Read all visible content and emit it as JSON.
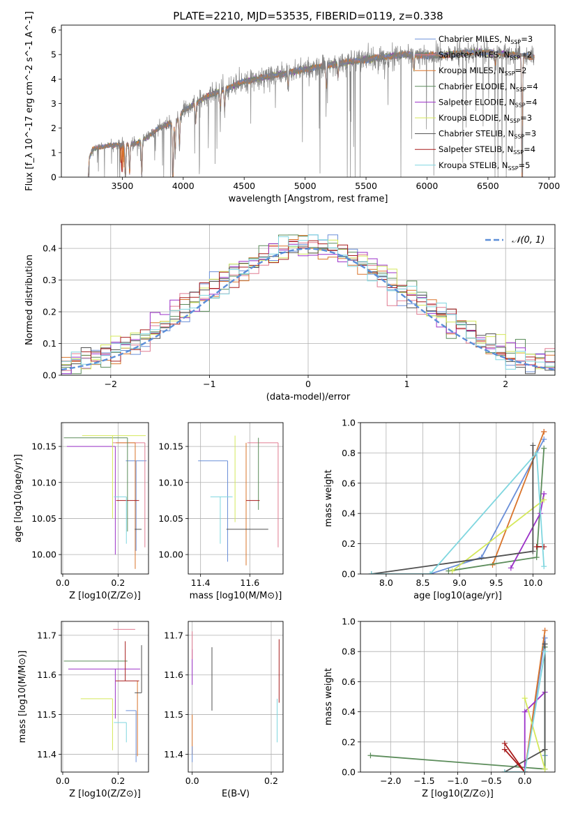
{
  "figure": {
    "title": "PLATE=2210, MJD=53535, FIBERID=0119, z=0.338"
  },
  "models": [
    {
      "name": "Chabrier MILES",
      "nssp": "3",
      "color": "#6a8fd8"
    },
    {
      "name": "Salpeter MILES",
      "nssp": "2",
      "color": "#e07b91"
    },
    {
      "name": "Kroupa MILES",
      "nssp": "2",
      "color": "#d9742b"
    },
    {
      "name": "Chabrier ELODIE",
      "nssp": "4",
      "color": "#5b8c5a"
    },
    {
      "name": "Salpeter ELODIE",
      "nssp": "4",
      "color": "#9b30c8"
    },
    {
      "name": "Kroupa ELODIE",
      "nssp": "3",
      "color": "#d4e85a"
    },
    {
      "name": "Chabrier STELIB",
      "nssp": "3",
      "color": "#505050"
    },
    {
      "name": "Salpeter STELIB",
      "nssp": "4",
      "color": "#a81c1c"
    },
    {
      "name": "Kroupa STELIB",
      "nssp": "5",
      "color": "#7fd6df"
    }
  ],
  "chart_data": [
    {
      "id": "spectrum",
      "type": "line",
      "xlabel": "wavelength [Angstrom, rest frame]",
      "ylabel": "Flux [f_λ 10^-17 erg cm^-2 s^-1 A^-1]",
      "xlim": [
        3000,
        7050
      ],
      "ylim": [
        0,
        6.2
      ],
      "xticks": [
        3500,
        4000,
        4500,
        5000,
        5500,
        6000,
        6500,
        7000
      ],
      "yticks": [
        0,
        1,
        2,
        3,
        4,
        5,
        6
      ],
      "x_range_data": [
        3220,
        6880
      ],
      "continuum_knots": [
        [
          3220,
          0.0
        ],
        [
          3230,
          0.8
        ],
        [
          3260,
          1.15
        ],
        [
          3400,
          1.3
        ],
        [
          3600,
          1.35
        ],
        [
          3700,
          1.6
        ],
        [
          3800,
          2.0
        ],
        [
          3950,
          2.3
        ],
        [
          4000,
          2.7
        ],
        [
          4200,
          3.3
        ],
        [
          4500,
          3.9
        ],
        [
          4800,
          4.2
        ],
        [
          5000,
          4.4
        ],
        [
          5300,
          4.65
        ],
        [
          5500,
          4.8
        ],
        [
          5800,
          5.0
        ],
        [
          6100,
          4.95
        ],
        [
          6400,
          5.1
        ],
        [
          6600,
          5.05
        ],
        [
          6880,
          4.9
        ]
      ],
      "absorption_lines": [
        [
          3934,
          1.3
        ],
        [
          3969,
          1.2
        ],
        [
          4102,
          0.8
        ],
        [
          4304,
          0.7
        ],
        [
          4340,
          0.8
        ],
        [
          4861,
          0.6
        ],
        [
          5175,
          0.9
        ],
        [
          5270,
          0.5
        ],
        [
          5893,
          0.6
        ],
        [
          6563,
          0.5
        ],
        [
          6780,
          5.0
        ],
        [
          3915,
          3.0
        ],
        [
          3525,
          1.5
        ],
        [
          3560,
          1.2
        ],
        [
          3660,
          1.4
        ]
      ]
    },
    {
      "id": "residuals",
      "type": "histogram",
      "xlabel": "(data-model)/error",
      "ylabel": "Normed distribution",
      "xlim": [
        -2.5,
        2.5
      ],
      "ylim": [
        0,
        0.475
      ],
      "xticks": [
        -2,
        -1,
        0,
        1,
        2
      ],
      "yticks": [
        0.0,
        0.1,
        0.2,
        0.3,
        0.4
      ],
      "bin_width": 0.1,
      "reference_curve": {
        "label": "𝒩(0, 1)",
        "color": "#5b8ed8"
      }
    },
    {
      "id": "z_vs_age",
      "type": "errorbar",
      "xlabel": "Z [log10(Z/Z⊙)]",
      "ylabel": "age  [log10(age/yr)]",
      "xlim": [
        -0.005,
        0.31
      ],
      "ylim": [
        9.973,
        10.183
      ],
      "xticks": [
        0.0,
        0.2
      ],
      "yticks": [
        10.0,
        10.05,
        10.1,
        10.15
      ],
      "points": [
        {
          "model": 0,
          "x": 0.265,
          "xerr": [
            0.037,
            0.038
          ],
          "y": 10.13,
          "yerr": [
            0.125,
            0.0
          ]
        },
        {
          "model": 1,
          "x": 0.297,
          "xerr": [
            0.117,
            0.0
          ],
          "y": 10.155,
          "yerr": [
            0.145,
            0.0
          ]
        },
        {
          "model": 2,
          "x": 0.262,
          "xerr": [
            0.07,
            0.0
          ],
          "y": 10.155,
          "yerr": [
            0.175,
            0.0
          ]
        },
        {
          "model": 3,
          "x": 0.234,
          "xerr": [
            0.23,
            0.0
          ],
          "y": 10.162,
          "yerr": [
            0.13,
            0.0
          ]
        },
        {
          "model": 4,
          "x": 0.19,
          "xerr": [
            0.175,
            0.0
          ],
          "y": 10.15,
          "yerr": [
            0.15,
            0.0
          ]
        },
        {
          "model": 5,
          "x": 0.18,
          "xerr": [
            0.11,
            0.12
          ],
          "y": 10.165,
          "yerr": [
            0.115,
            0.0
          ]
        },
        {
          "model": 6,
          "x": 0.285,
          "xerr": [
            0.025,
            0.0
          ],
          "y": 10.035,
          "yerr": [
            0.0,
            0.0
          ]
        },
        {
          "model": 7,
          "x": 0.226,
          "xerr": [
            0.033,
            0.05
          ],
          "y": 10.075,
          "yerr": [
            0.0,
            0.0
          ]
        },
        {
          "model": 8,
          "x": 0.23,
          "xerr": [
            0.045,
            0.0
          ],
          "y": 10.08,
          "yerr": [
            0.065,
            0.0
          ]
        }
      ]
    },
    {
      "id": "mass_vs_age",
      "type": "errorbar",
      "xlabel": "mass [log10(M/M⊙)]",
      "ylabel": "",
      "xlim": [
        11.35,
        11.735
      ],
      "ylim": [
        9.973,
        10.183
      ],
      "xticks": [
        11.4,
        11.6
      ],
      "yticks": [
        10.0,
        10.05,
        10.1,
        10.15
      ],
      "points": [
        {
          "model": 0,
          "x": 11.51,
          "xerr": [
            0.12,
            0.0
          ],
          "y": 10.13,
          "yerr": [
            0.14,
            0.0
          ]
        },
        {
          "model": 1,
          "x": 11.715,
          "xerr": [
            0.125,
            0.0
          ],
          "y": 10.155,
          "yerr": [
            0.145,
            0.0
          ]
        },
        {
          "model": 2,
          "x": 11.585,
          "xerr": [
            0.0,
            0.0
          ],
          "y": 10.155,
          "yerr": [
            0.17,
            0.0
          ]
        },
        {
          "model": 3,
          "x": 11.635,
          "xerr": [
            0.0,
            0.0
          ],
          "y": 10.162,
          "yerr": [
            0.1,
            0.0
          ]
        },
        {
          "model": 4,
          "x": 11.615,
          "xerr": [
            0.0,
            0.0
          ],
          "y": 10.15,
          "yerr": [
            0.0,
            0.0
          ]
        },
        {
          "model": 5,
          "x": 11.54,
          "xerr": [
            0.0,
            0.0
          ],
          "y": 10.165,
          "yerr": [
            0.12,
            0.0
          ]
        },
        {
          "model": 6,
          "x": 11.555,
          "xerr": [
            0.05,
            0.12
          ],
          "y": 10.035,
          "yerr": [
            0.0,
            0.0
          ]
        },
        {
          "model": 7,
          "x": 11.585,
          "xerr": [
            0.0,
            0.055
          ],
          "y": 10.075,
          "yerr": [
            0.0,
            0.0
          ]
        },
        {
          "model": 8,
          "x": 11.48,
          "xerr": [
            0.04,
            0.05
          ],
          "y": 10.08,
          "yerr": [
            0.065,
            0.0
          ]
        }
      ]
    },
    {
      "id": "age_vs_weight",
      "type": "line",
      "xlabel": "age  [log10(age/yr)]",
      "ylabel": "mass weight",
      "xlim": [
        7.65,
        10.3
      ],
      "ylim": [
        0,
        1.0
      ],
      "xticks": [
        8.0,
        8.5,
        9.0,
        9.5,
        10.0
      ],
      "yticks": [
        0.0,
        0.2,
        0.4,
        0.6,
        0.8,
        1.0
      ],
      "series": [
        {
          "model": 0,
          "x": [
            8.6,
            9.3,
            10.15
          ],
          "y": [
            0.0,
            0.11,
            0.89
          ]
        },
        {
          "model": 1,
          "x": [
            10.15
          ],
          "y": [
            0.94
          ]
        },
        {
          "model": 2,
          "x": [
            9.45,
            10.15
          ],
          "y": [
            0.06,
            0.94
          ]
        },
        {
          "model": 3,
          "x": [
            8.85,
            10.05,
            10.15
          ],
          "y": [
            0.02,
            0.11,
            0.83
          ]
        },
        {
          "model": 4,
          "x": [
            9.7,
            10.1,
            10.15
          ],
          "y": [
            0.04,
            0.4,
            0.53
          ]
        },
        {
          "model": 5,
          "x": [
            8.9,
            10.15
          ],
          "y": [
            0.02,
            0.49
          ]
        },
        {
          "model": 6,
          "x": [
            7.8,
            10.0,
            10.0
          ],
          "y": [
            0.0,
            0.15,
            0.85
          ]
        },
        {
          "model": 7,
          "x": [
            10.05,
            10.15
          ],
          "y": [
            0.18,
            0.18
          ]
        },
        {
          "model": 8,
          "x": [
            7.8,
            8.6,
            10.05,
            10.15
          ],
          "y": [
            0.0,
            0.0,
            0.8,
            0.05
          ]
        }
      ]
    },
    {
      "id": "z_vs_mass",
      "type": "errorbar",
      "xlabel": "Z [log10(Z/Z⊙)]",
      "ylabel": "mass [log10(M/M⊙)]",
      "xlim": [
        -0.005,
        0.31
      ],
      "ylim": [
        11.355,
        11.735
      ],
      "xticks": [
        0.0,
        0.2
      ],
      "yticks": [
        11.4,
        11.5,
        11.6,
        11.7
      ],
      "points": [
        {
          "model": 0,
          "x": 0.265,
          "xerr": [
            0.037,
            0.0
          ],
          "y": 11.51,
          "yerr": [
            0.13,
            0.0
          ]
        },
        {
          "model": 1,
          "x": 0.262,
          "xerr": [
            0.08,
            0.0
          ],
          "y": 11.715,
          "yerr": [
            0.0,
            0.0
          ]
        },
        {
          "model": 2,
          "x": 0.27,
          "xerr": [
            0.0,
            0.0
          ],
          "y": 11.585,
          "yerr": [
            0.19,
            0.0
          ]
        },
        {
          "model": 3,
          "x": 0.234,
          "xerr": [
            0.23,
            0.0
          ],
          "y": 11.635,
          "yerr": [
            0.0,
            0.0
          ]
        },
        {
          "model": 4,
          "x": 0.19,
          "xerr": [
            0.17,
            0.09
          ],
          "y": 11.615,
          "yerr": [
            0.125,
            0.0
          ]
        },
        {
          "model": 5,
          "x": 0.18,
          "xerr": [
            0.115,
            0.0
          ],
          "y": 11.54,
          "yerr": [
            0.13,
            0.0
          ]
        },
        {
          "model": 6,
          "x": 0.285,
          "xerr": [
            0.025,
            0.0
          ],
          "y": 11.555,
          "yerr": [
            0.0,
            0.12
          ]
        },
        {
          "model": 7,
          "x": 0.226,
          "xerr": [
            0.035,
            0.05
          ],
          "y": 11.585,
          "yerr": [
            0.0,
            0.1
          ]
        },
        {
          "model": 8,
          "x": 0.23,
          "xerr": [
            0.045,
            0.0
          ],
          "y": 11.48,
          "yerr": [
            0.05,
            0.0
          ]
        }
      ]
    },
    {
      "id": "ebv_vs_mass",
      "type": "errorbar",
      "xlabel": "E(B-V)",
      "ylabel": "",
      "xlim": [
        -0.01,
        0.23
      ],
      "ylim": [
        11.355,
        11.735
      ],
      "xticks": [
        0.0,
        0.2
      ],
      "yticks": [
        11.4,
        11.5,
        11.6,
        11.7
      ],
      "points": [
        {
          "model": 4,
          "x": 0.0,
          "xerr": [
            0.0,
            0.0
          ],
          "y": 11.615,
          "yerr": [
            0.04,
            0.05
          ]
        },
        {
          "model": 1,
          "x": 0.0,
          "xerr": [
            0.0,
            0.0
          ],
          "y": 11.67,
          "yerr": [
            0.03,
            0.04
          ]
        },
        {
          "model": 2,
          "x": 0.0,
          "xerr": [
            0.0,
            0.0
          ],
          "y": 11.45,
          "yerr": [
            0.05,
            0.05
          ]
        },
        {
          "model": 0,
          "x": 0.0,
          "xerr": [
            0.0,
            0.0
          ],
          "y": 11.4,
          "yerr": [
            0.02,
            0.02
          ]
        },
        {
          "model": 6,
          "x": 0.05,
          "xerr": [
            0.0,
            0.0
          ],
          "y": 11.59,
          "yerr": [
            0.08,
            0.08
          ]
        },
        {
          "model": 7,
          "x": 0.22,
          "xerr": [
            0.0,
            0.0
          ],
          "y": 11.6,
          "yerr": [
            0.07,
            0.09
          ]
        },
        {
          "model": 8,
          "x": 0.215,
          "xerr": [
            0.0,
            0.0
          ],
          "y": 11.49,
          "yerr": [
            0.06,
            0.05
          ]
        }
      ]
    },
    {
      "id": "z_vs_weight",
      "type": "line",
      "xlabel": "Z [log10(Z/Z⊙)]",
      "ylabel": "mass weight",
      "xlim": [
        -2.45,
        0.45
      ],
      "ylim": [
        0,
        1.0
      ],
      "xticks": [
        -2.0,
        -1.5,
        -1.0,
        -0.5,
        0.0
      ],
      "yticks": [
        0.0,
        0.2,
        0.4,
        0.6,
        0.8,
        1.0
      ],
      "series": [
        {
          "model": 0,
          "x": [
            0.0,
            0.3,
            0.3
          ],
          "y": [
            0.0,
            0.89,
            0.11
          ]
        },
        {
          "model": 1,
          "x": [
            0.3
          ],
          "y": [
            0.94
          ]
        },
        {
          "model": 2,
          "x": [
            0.0,
            0.3
          ],
          "y": [
            0.0,
            0.94
          ]
        },
        {
          "model": 3,
          "x": [
            -2.3,
            0.3,
            0.3
          ],
          "y": [
            0.11,
            0.02,
            0.83
          ]
        },
        {
          "model": 4,
          "x": [
            0.0,
            0.0,
            0.3
          ],
          "y": [
            0.0,
            0.4,
            0.53
          ]
        },
        {
          "model": 5,
          "x": [
            0.0,
            0.3
          ],
          "y": [
            0.49,
            0.02
          ]
        },
        {
          "model": 6,
          "x": [
            -0.3,
            0.3,
            0.3
          ],
          "y": [
            0.0,
            0.15,
            0.85
          ]
        },
        {
          "model": 7,
          "x": [
            -0.3,
            0.0,
            -0.3
          ],
          "y": [
            0.19,
            0.0,
            0.15
          ]
        },
        {
          "model": 8,
          "x": [
            -0.3,
            0.0,
            0.3
          ],
          "y": [
            0.0,
            0.0,
            0.8
          ]
        }
      ]
    }
  ]
}
